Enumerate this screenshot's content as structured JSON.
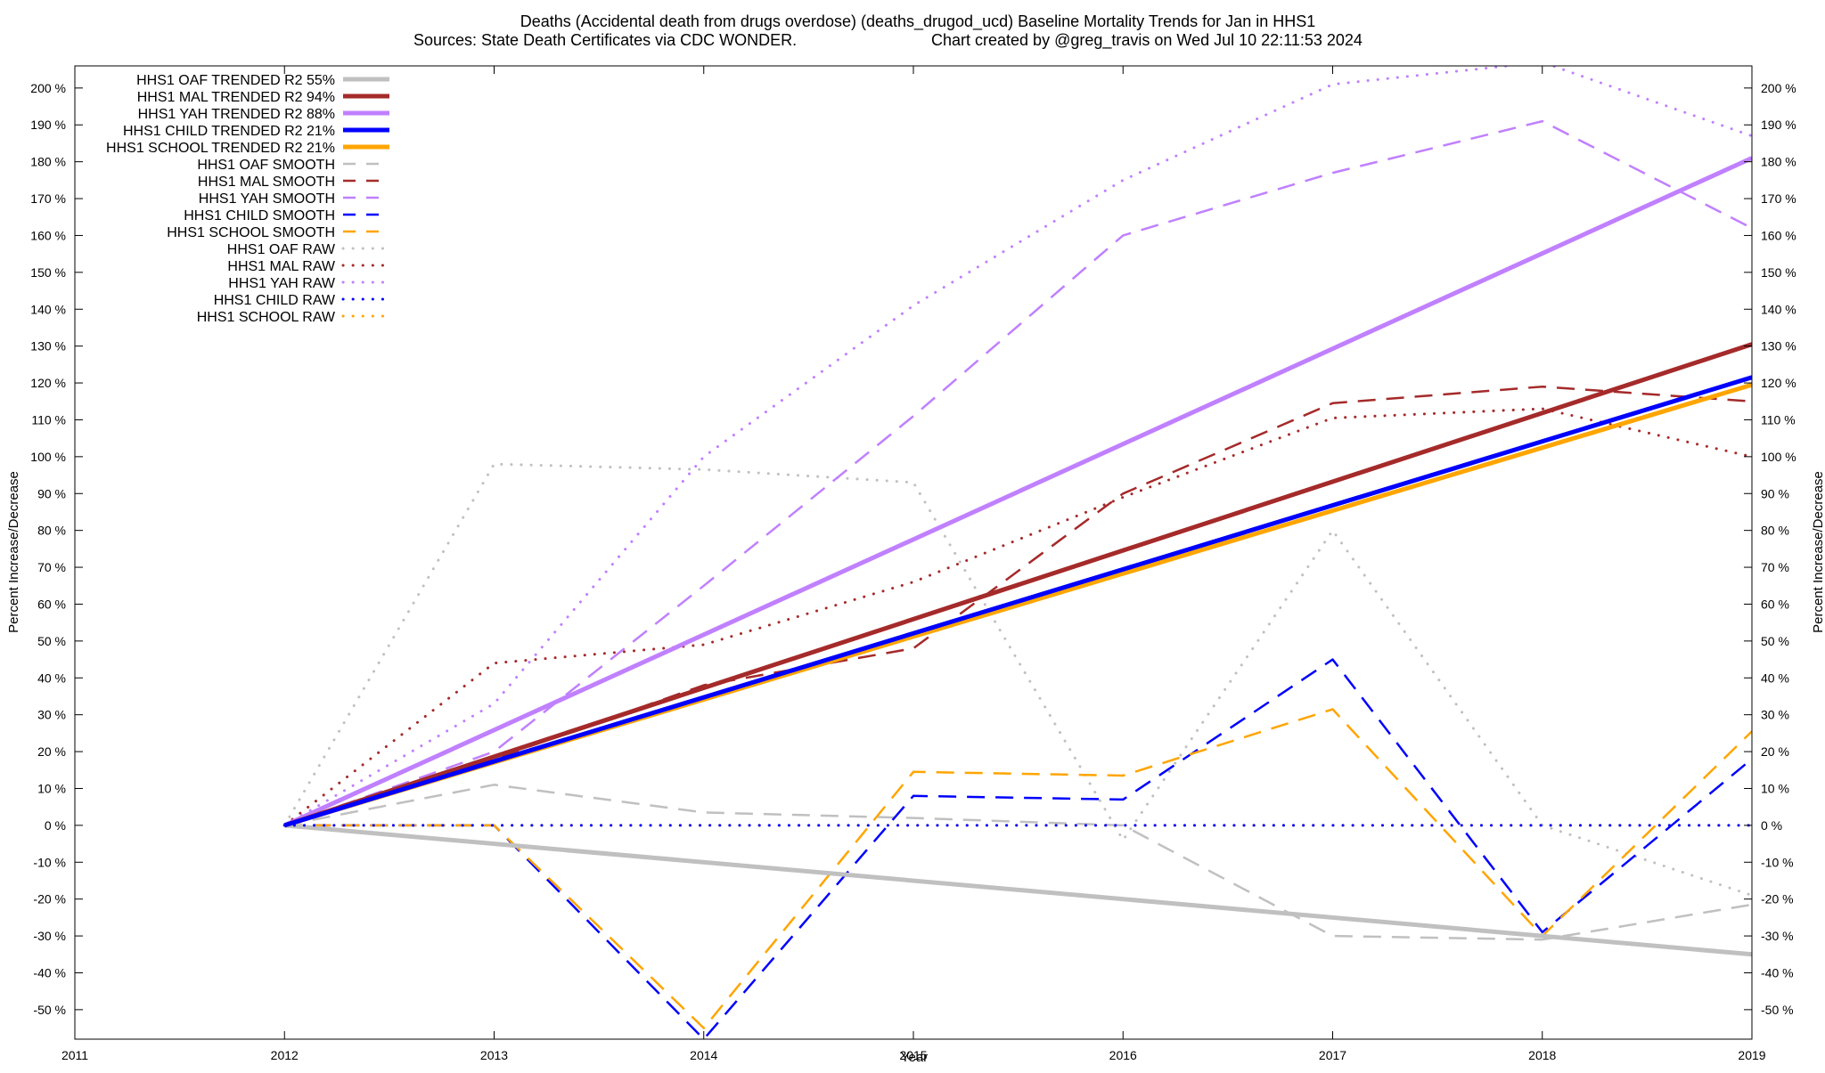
{
  "chart_data": {
    "type": "line",
    "title_line1": "Deaths (Accidental death from drugs overdose) (deaths_drugod_ucd)  Baseline Mortality Trends for Jan in HHS1",
    "title_line2_left": "Sources: State Death Certificates via CDC WONDER.",
    "title_line2_right": "Chart created by @greg_travis on Wed Jul 10 22:11:53 2024",
    "xlabel": "Year",
    "ylabel_left": "Percent Increase/Decrease",
    "ylabel_right": "Percent Increase/Decrease",
    "xlim": [
      2011,
      2019
    ],
    "ylim": [
      -58,
      206
    ],
    "x_ticks": [
      "2011",
      "2012",
      "2013",
      "2014",
      "2015",
      "2016",
      "2017",
      "2018",
      "2019"
    ],
    "y_ticks": [
      "200 %",
      "190 %",
      "180 %",
      "170 %",
      "160 %",
      "150 %",
      "140 %",
      "130 %",
      "120 %",
      "110 %",
      "100 %",
      "90 %",
      "80 %",
      "70 %",
      "60 %",
      "50 %",
      "40 %",
      "30 %",
      "20 %",
      "10 %",
      "0 %",
      "-10 %",
      "-20 %",
      "-30 %",
      "-40 %",
      "-50 %"
    ],
    "y_tick_values": [
      200,
      190,
      180,
      170,
      160,
      150,
      140,
      130,
      120,
      110,
      100,
      90,
      80,
      70,
      60,
      50,
      40,
      30,
      20,
      10,
      0,
      -10,
      -20,
      -30,
      -40,
      -50
    ],
    "legend_position": "top-left",
    "series": [
      {
        "name": "HHS1 OAF TRENDED R2  55%",
        "style": "solid",
        "color": "#c0c0c0",
        "x": [
          2012,
          2019
        ],
        "y": [
          0,
          -35
        ]
      },
      {
        "name": "HHS1 MAL TRENDED R2  94%",
        "style": "solid",
        "color": "#a52a2a",
        "x": [
          2012,
          2019
        ],
        "y": [
          0,
          130.5
        ]
      },
      {
        "name": "HHS1 YAH TRENDED R2  88%",
        "style": "solid",
        "color": "#c080ff",
        "x": [
          2012,
          2019
        ],
        "y": [
          0,
          181
        ]
      },
      {
        "name": "HHS1 CHILD TRENDED R2  21%",
        "style": "solid",
        "color": "#0000ff",
        "x": [
          2012,
          2019
        ],
        "y": [
          0,
          121.5
        ]
      },
      {
        "name": "HHS1 SCHOOL TRENDED R2  21%",
        "style": "solid",
        "color": "#ffa500",
        "x": [
          2012,
          2019
        ],
        "y": [
          0,
          119.5
        ]
      },
      {
        "name": "HHS1 OAF SMOOTH",
        "style": "dash",
        "color": "#c0c0c0",
        "x": [
          2012,
          2013,
          2014,
          2015,
          2016,
          2017,
          2018,
          2019
        ],
        "y": [
          0,
          11,
          3.5,
          2,
          0,
          -30,
          -31,
          -21.5
        ]
      },
      {
        "name": "HHS1 MAL SMOOTH",
        "style": "dash",
        "color": "#a52a2a",
        "x": [
          2012,
          2013,
          2014,
          2015,
          2016,
          2017,
          2018,
          2019
        ],
        "y": [
          0,
          18,
          38,
          48,
          90,
          114.5,
          119,
          115
        ]
      },
      {
        "name": "HHS1 YAH SMOOTH",
        "style": "dash",
        "color": "#c080ff",
        "x": [
          2012,
          2013,
          2014,
          2015,
          2016,
          2017,
          2018,
          2019
        ],
        "y": [
          0,
          20,
          65,
          111,
          160,
          177,
          191,
          162
        ]
      },
      {
        "name": "HHS1 CHILD SMOOTH",
        "style": "dash",
        "color": "#0000ff",
        "x": [
          2012,
          2013,
          2014,
          2015,
          2016,
          2017,
          2018,
          2019
        ],
        "y": [
          0,
          0,
          -58,
          8,
          7,
          45,
          -29,
          18
        ]
      },
      {
        "name": "HHS1 SCHOOL SMOOTH",
        "style": "dash",
        "color": "#ffa500",
        "x": [
          2012,
          2013,
          2014,
          2015,
          2016,
          2017,
          2018,
          2019
        ],
        "y": [
          0,
          0,
          -55,
          14.5,
          13.5,
          31.5,
          -30,
          25.5
        ]
      },
      {
        "name": "HHS1 OAF RAW",
        "style": "dot",
        "color": "#c0c0c0",
        "x": [
          2012,
          2013,
          2014,
          2015,
          2016,
          2017,
          2018,
          2019
        ],
        "y": [
          0,
          98,
          96.5,
          93,
          -4,
          80,
          0,
          -19
        ]
      },
      {
        "name": "HHS1 MAL RAW",
        "style": "dot",
        "color": "#a52a2a",
        "x": [
          2012,
          2013,
          2014,
          2015,
          2016,
          2017,
          2018,
          2019
        ],
        "y": [
          0,
          44,
          49,
          66,
          89,
          110.5,
          113,
          100
        ]
      },
      {
        "name": "HHS1 YAH RAW",
        "style": "dot",
        "color": "#c080ff",
        "x": [
          2012,
          2013,
          2014,
          2015,
          2016,
          2017,
          2018,
          2019
        ],
        "y": [
          0,
          33,
          100,
          141,
          175,
          201,
          207,
          187
        ]
      },
      {
        "name": "HHS1 CHILD RAW",
        "style": "dot",
        "color": "#0000ff",
        "x": [
          2012,
          2013,
          2014,
          2015,
          2016,
          2017,
          2018,
          2019
        ],
        "y": [
          0,
          0,
          0,
          0,
          0,
          0,
          0,
          0
        ]
      },
      {
        "name": "HHS1 SCHOOL RAW",
        "style": "dot",
        "color": "#ffa500",
        "x": [
          2012,
          2019
        ],
        "y": [
          0,
          0
        ]
      }
    ]
  }
}
